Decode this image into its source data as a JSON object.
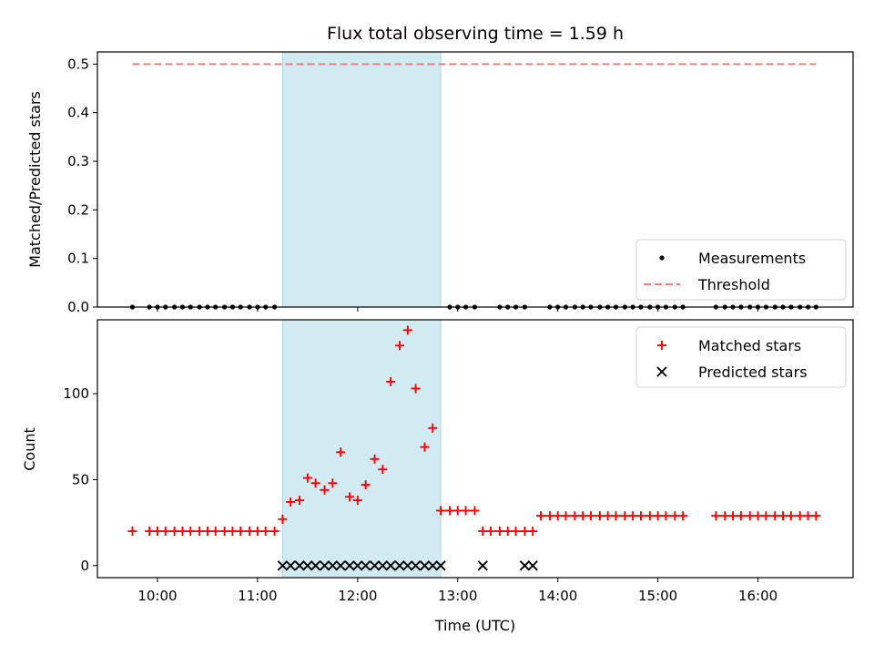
{
  "title": "Flux total observing time = 1.59 h",
  "colors": {
    "matched": "#ff0000",
    "predicted": "#000000",
    "threshold": "#f08080",
    "shade": "#add8e6",
    "measure": "#000000"
  },
  "chart_data": [
    {
      "type": "scatter",
      "ylabel": "Matched/Predicted stars",
      "ylim": [
        0,
        0.525
      ],
      "yticks": [
        0.0,
        0.1,
        0.2,
        0.3,
        0.4,
        0.5
      ],
      "ytick_labels": [
        "0.0",
        "0.1",
        "0.2",
        "0.3",
        "0.4",
        "0.5"
      ],
      "xlim": [
        9.4,
        16.95
      ],
      "shaded_span": [
        11.25,
        12.83
      ],
      "threshold": {
        "name": "Threshold",
        "value": 0.5,
        "x": [
          9.75,
          16.58
        ]
      },
      "legend": {
        "placement": "lower-right",
        "entries": [
          "Measurements",
          "Threshold"
        ]
      },
      "series": [
        {
          "name": "Measurements",
          "x": [
            9.75,
            9.92,
            10.0,
            10.08,
            10.17,
            10.25,
            10.33,
            10.42,
            10.5,
            10.58,
            10.67,
            10.75,
            10.83,
            10.92,
            11.0,
            11.08,
            11.17,
            12.92,
            13.0,
            13.08,
            13.17,
            13.42,
            13.5,
            13.58,
            13.67,
            13.92,
            14.0,
            14.08,
            14.17,
            14.25,
            14.33,
            14.42,
            14.5,
            14.58,
            14.67,
            14.75,
            14.83,
            14.92,
            15.0,
            15.08,
            15.17,
            15.25,
            15.58,
            15.67,
            15.75,
            15.83,
            15.92,
            16.0,
            16.08,
            16.17,
            16.25,
            16.33,
            16.42,
            16.5,
            16.58
          ],
          "y": [
            0,
            0,
            0,
            0,
            0,
            0,
            0,
            0,
            0,
            0,
            0,
            0,
            0,
            0,
            0,
            0,
            0,
            0,
            0,
            0,
            0,
            0,
            0,
            0,
            0,
            0,
            0,
            0,
            0,
            0,
            0,
            0,
            0,
            0,
            0,
            0,
            0,
            0,
            0,
            0,
            0,
            0,
            0,
            0,
            0,
            0,
            0,
            0,
            0,
            0,
            0,
            0,
            0,
            0,
            0
          ]
        }
      ]
    },
    {
      "type": "scatter",
      "xlabel": "Time (UTC)",
      "ylabel": "Count",
      "ylim": [
        -7,
        143
      ],
      "yticks": [
        0,
        50,
        100
      ],
      "ytick_labels": [
        "0",
        "50",
        "100"
      ],
      "xlim": [
        9.4,
        16.95
      ],
      "xticks": [
        10,
        11,
        12,
        13,
        14,
        15,
        16
      ],
      "xtick_labels": [
        "10:00",
        "11:00",
        "12:00",
        "13:00",
        "14:00",
        "15:00",
        "16:00"
      ],
      "shaded_span": [
        11.25,
        12.83
      ],
      "legend": {
        "placement": "upper-right",
        "entries": [
          "Matched stars",
          "Predicted stars"
        ]
      },
      "series": [
        {
          "name": "Matched stars",
          "x": [
            9.75,
            9.92,
            10.0,
            10.08,
            10.17,
            10.25,
            10.33,
            10.42,
            10.5,
            10.58,
            10.67,
            10.75,
            10.83,
            10.92,
            11.0,
            11.08,
            11.17,
            11.25,
            11.33,
            11.42,
            11.5,
            11.58,
            11.67,
            11.75,
            11.83,
            11.92,
            12.0,
            12.08,
            12.17,
            12.25,
            12.33,
            12.42,
            12.5,
            12.58,
            12.67,
            12.75,
            12.83,
            12.92,
            13.0,
            13.08,
            13.17,
            13.25,
            13.33,
            13.42,
            13.5,
            13.58,
            13.67,
            13.75,
            13.83,
            13.92,
            14.0,
            14.08,
            14.17,
            14.25,
            14.33,
            14.42,
            14.5,
            14.58,
            14.67,
            14.75,
            14.83,
            14.92,
            15.0,
            15.08,
            15.17,
            15.25,
            15.58,
            15.67,
            15.75,
            15.83,
            15.92,
            16.0,
            16.08,
            16.17,
            16.25,
            16.33,
            16.42,
            16.5,
            16.58
          ],
          "y": [
            20,
            20,
            20,
            20,
            20,
            20,
            20,
            20,
            20,
            20,
            20,
            20,
            20,
            20,
            20,
            20,
            20,
            27,
            37,
            38,
            51,
            48,
            44,
            48,
            66,
            40,
            38,
            47,
            62,
            56,
            107,
            128,
            137,
            103,
            69,
            80,
            32,
            32,
            32,
            32,
            32,
            20,
            20,
            20,
            20,
            20,
            20,
            20,
            29,
            29,
            29,
            29,
            29,
            29,
            29,
            29,
            29,
            29,
            29,
            29,
            29,
            29,
            29,
            29,
            29,
            29,
            29,
            29,
            29,
            29,
            29,
            29,
            29,
            29,
            29,
            29,
            29,
            29,
            29
          ]
        },
        {
          "name": "Predicted stars",
          "x": [
            11.25,
            11.33,
            11.42,
            11.5,
            11.58,
            11.67,
            11.75,
            11.83,
            11.92,
            12.0,
            12.08,
            12.17,
            12.25,
            12.33,
            12.42,
            12.5,
            12.58,
            12.67,
            12.75,
            12.83,
            13.25,
            13.67,
            13.75
          ],
          "y": [
            0,
            0,
            0,
            0,
            0,
            0,
            0,
            0,
            0,
            0,
            0,
            0,
            0,
            0,
            0,
            0,
            0,
            0,
            0,
            0,
            0,
            0,
            0
          ]
        }
      ]
    }
  ]
}
